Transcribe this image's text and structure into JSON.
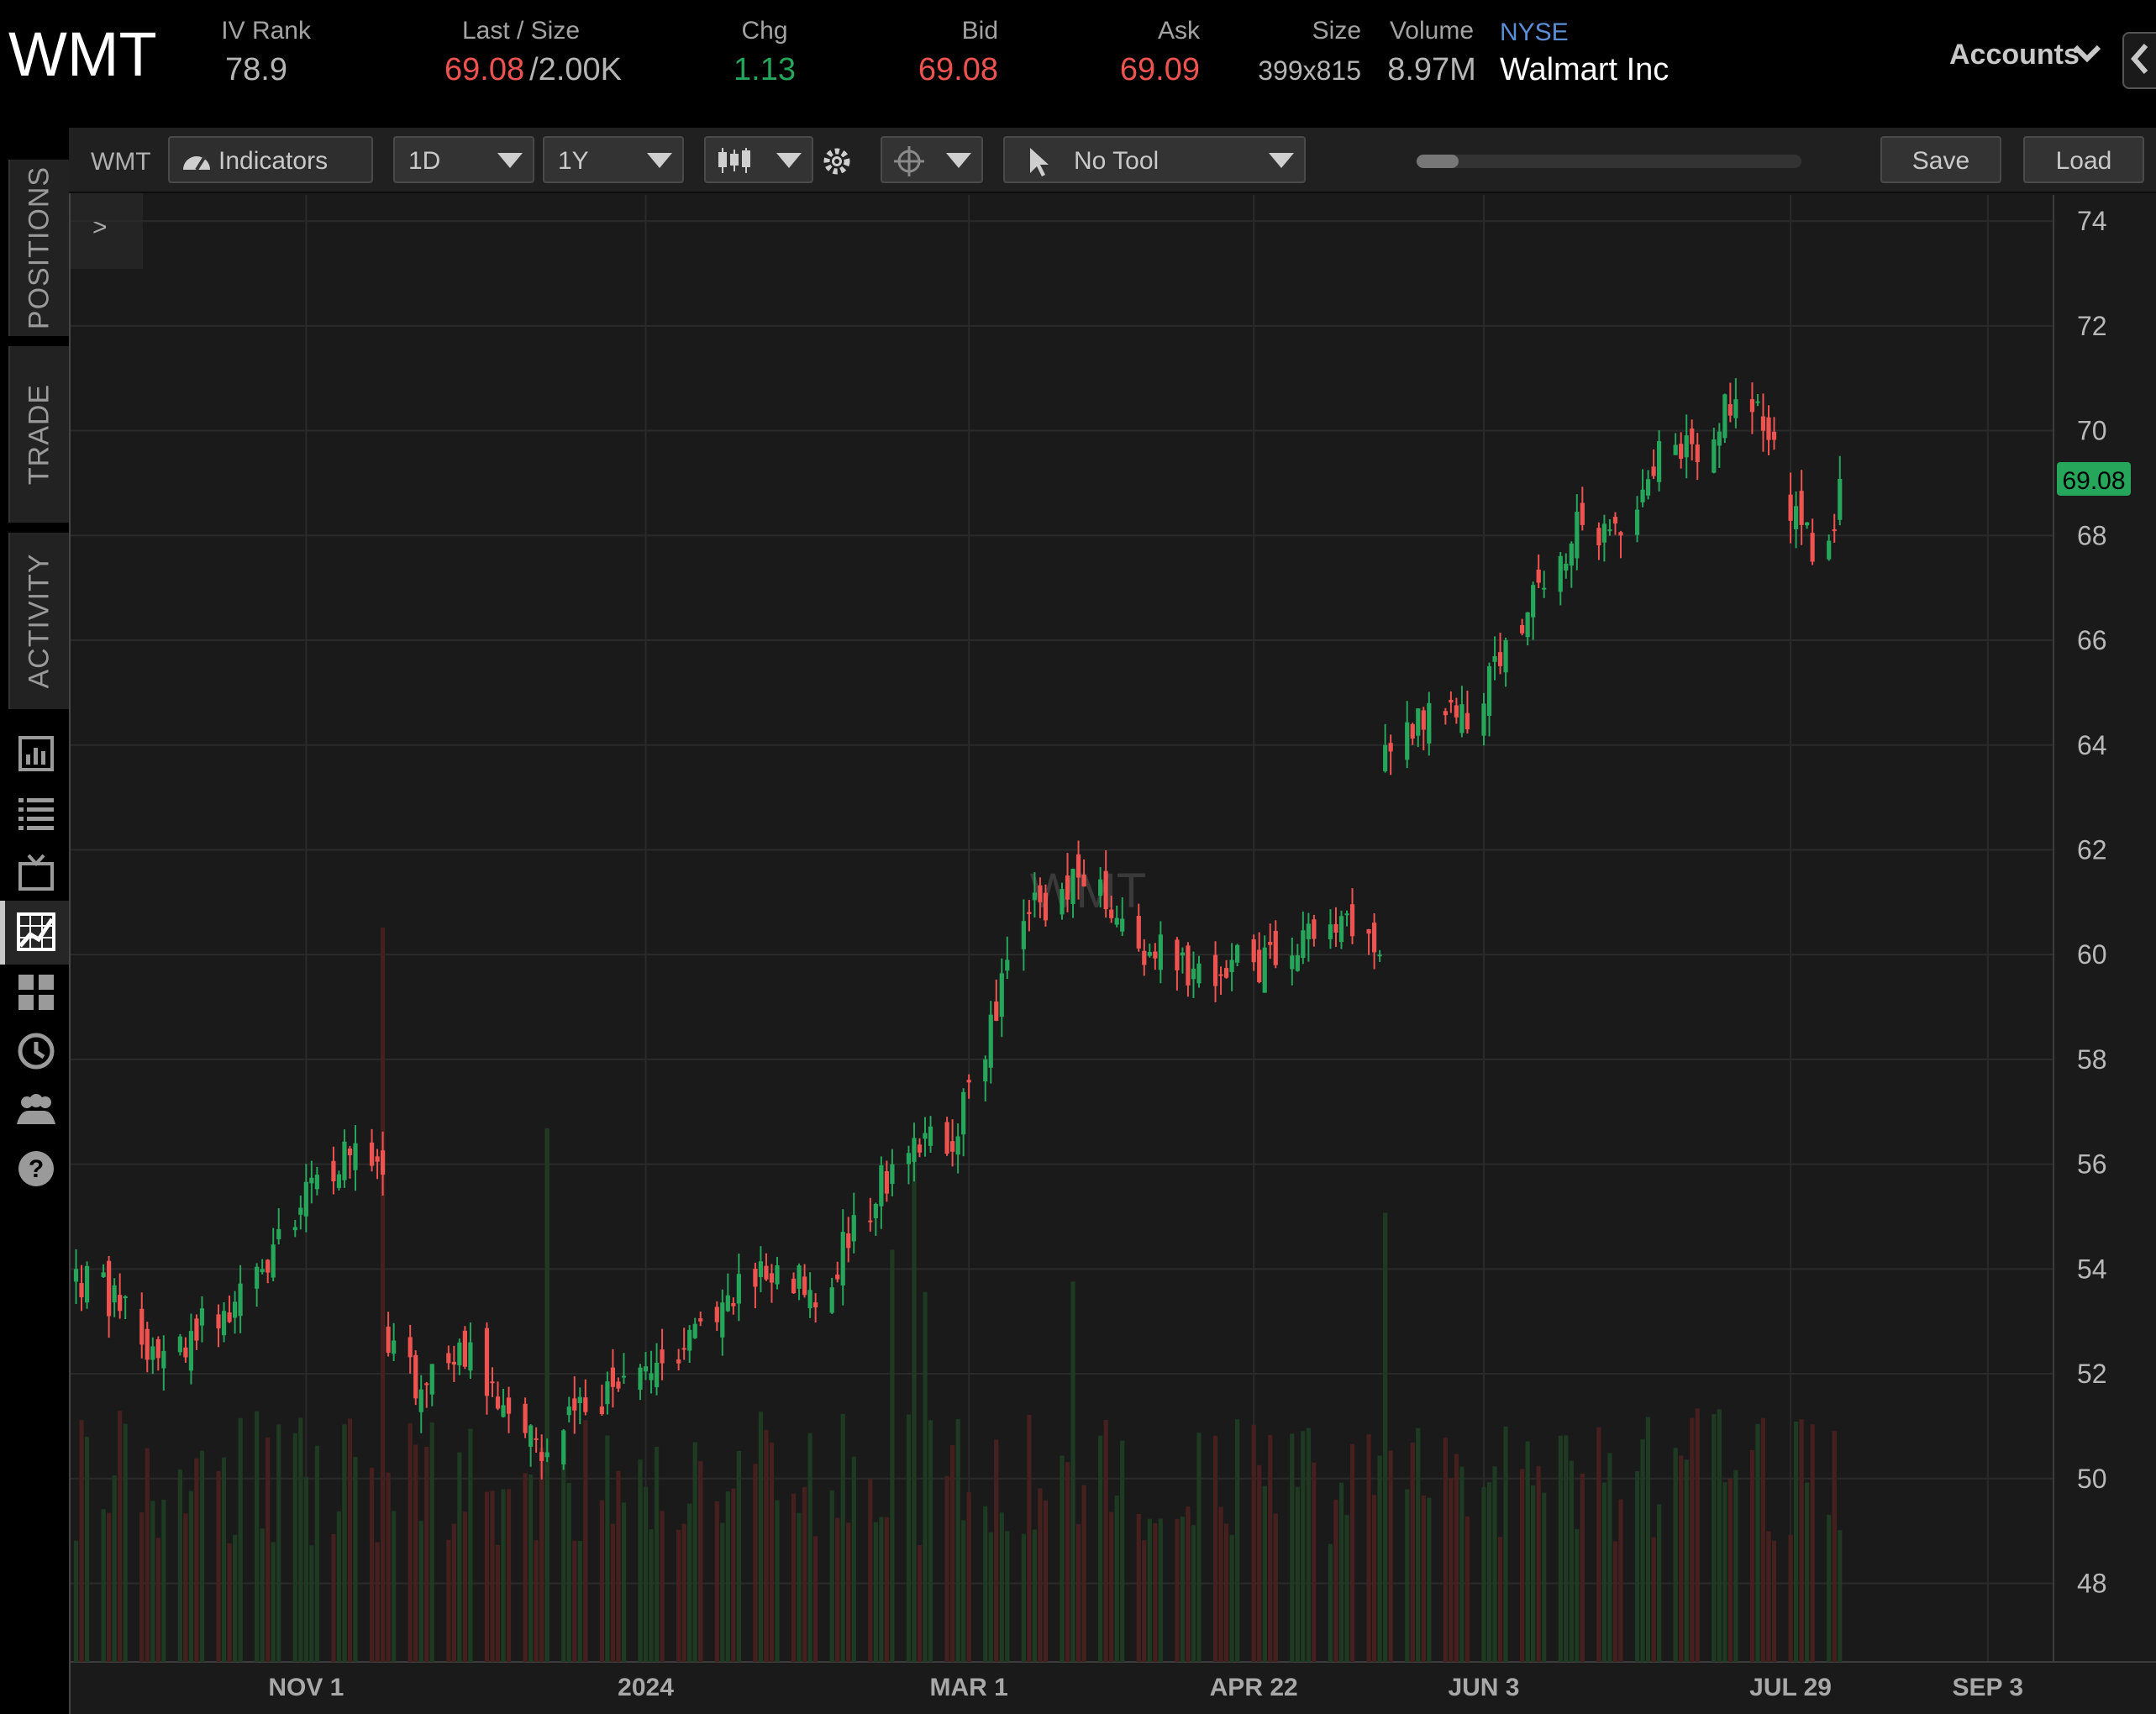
{
  "header": {
    "symbol": "WMT",
    "iv_rank_label": "IV Rank",
    "iv_rank": "78.9",
    "last_label": "Last / Size",
    "last": "69.08",
    "size": "/2.00K",
    "chg_label": "Chg",
    "chg": "1.13",
    "bid_label": "Bid",
    "bid": "69.08",
    "ask_label": "Ask",
    "ask": "69.09",
    "size_label": "Size",
    "size_val": "399x815",
    "volume_label": "Volume",
    "volume": "8.97M",
    "exchange": "NYSE",
    "company": "Walmart Inc",
    "accounts": "Accounts"
  },
  "sidebar": {
    "tabs": [
      "POSITIONS",
      "TRADE",
      "ACTIVITY"
    ],
    "icons": [
      "chart-panel-icon",
      "watchlist-icon",
      "tv-icon",
      "chart-icon",
      "grid-icon",
      "history-icon",
      "community-icon",
      "help-icon"
    ]
  },
  "toolbar": {
    "symbol": "WMT",
    "indicators": "Indicators",
    "interval": "1D",
    "range": "1Y",
    "tool": "No Tool",
    "zoom_minus": "-",
    "zoom_plus": "+",
    "save": "Save",
    "load": "Load",
    "expand": ">"
  },
  "colors": {
    "up": "#26a65b",
    "down": "#ef5350",
    "background": "#1a1a1a",
    "last_price_tag": "#26a65b"
  },
  "chart_data": {
    "type": "candlestick",
    "watermark": "WMT",
    "ylim": [
      46.5,
      74.5
    ],
    "y_ticks": [
      48,
      50,
      52,
      54,
      56,
      58,
      60,
      62,
      64,
      66,
      68,
      70,
      72,
      74
    ],
    "x_tick_labels": [
      "NOV 1",
      "2024",
      "MAR 1",
      "APR 22",
      "JUN 3",
      "JUL 29",
      "SEP 3"
    ],
    "x_tick_dates": [
      "2023-11-01",
      "2024-01-02",
      "2024-03-01",
      "2024-04-22",
      "2024-06-03",
      "2024-07-29",
      "2024-09-03"
    ],
    "x_range": [
      "2023-09-19",
      "2024-09-15"
    ],
    "last_price": "69.08",
    "grid": true,
    "anchors": {
      "dates": [
        "2023-09-20",
        "2023-09-28",
        "2023-10-05",
        "2023-10-17",
        "2023-10-24",
        "2023-10-30",
        "2023-11-03",
        "2023-11-10",
        "2023-11-15",
        "2023-11-16",
        "2023-11-22",
        "2023-12-01",
        "2023-12-07",
        "2023-12-15",
        "2023-12-20",
        "2024-01-05",
        "2024-01-12",
        "2024-01-24",
        "2024-02-01",
        "2024-02-08",
        "2024-02-16",
        "2024-02-20",
        "2024-02-26",
        "2024-03-04",
        "2024-03-08",
        "2024-03-14",
        "2024-03-22",
        "2024-03-28",
        "2024-04-08",
        "2024-04-18",
        "2024-04-26",
        "2024-05-03",
        "2024-05-13",
        "2024-05-15",
        "2024-05-16",
        "2024-05-24",
        "2024-05-31",
        "2024-06-07",
        "2024-06-14",
        "2024-06-21",
        "2024-06-28",
        "2024-07-05",
        "2024-07-12",
        "2024-07-19",
        "2024-07-24",
        "2024-07-31",
        "2024-08-02",
        "2024-08-05",
        "2024-08-07"
      ],
      "closes": [
        54.0,
        53.2,
        52.3,
        53.2,
        54.0,
        54.8,
        55.8,
        56.4,
        55.8,
        52.4,
        51.7,
        52.6,
        51.4,
        50.5,
        51.3,
        52.2,
        53.0,
        53.8,
        53.6,
        54.4,
        56.0,
        56.5,
        56.2,
        58.0,
        59.9,
        61.0,
        61.3,
        60.7,
        59.7,
        59.9,
        59.8,
        60.3,
        60.4,
        60.0,
        64.0,
        64.8,
        64.3,
        66.0,
        67.0,
        68.2,
        68.0,
        69.8,
        69.4,
        70.6,
        70.0,
        68.2,
        67.5,
        67.9,
        69.08
      ]
    },
    "volume_ylim": [
      0,
      142
    ],
    "volume_spikes": [
      {
        "date": "2023-11-15",
        "value": 139
      },
      {
        "date": "2023-12-15",
        "value": 101
      },
      {
        "date": "2024-02-20",
        "value": 95
      },
      {
        "date": "2024-02-16",
        "value": 78
      },
      {
        "date": "2024-02-22",
        "value": 70
      },
      {
        "date": "2024-03-20",
        "value": 72
      },
      {
        "date": "2024-05-16",
        "value": 85
      },
      {
        "date": "2024-05-17",
        "value": 40
      }
    ]
  }
}
